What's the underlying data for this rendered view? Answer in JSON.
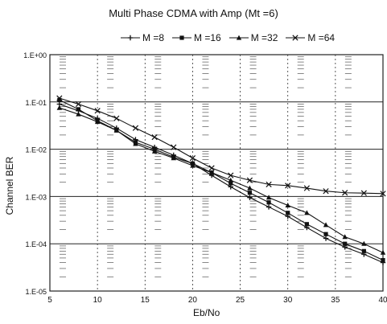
{
  "chart_data": {
    "type": "line",
    "title": "Multi Phase CDMA with Amp (Mt =6)",
    "xlabel": "Eb/No",
    "ylabel": "Channel BER",
    "xlim": [
      5,
      40
    ],
    "ylim_log10": [
      -5,
      0
    ],
    "yscale": "log",
    "x_ticks": [
      "5",
      "10",
      "15",
      "20",
      "25",
      "30",
      "35",
      "40"
    ],
    "y_ticks": [
      "1.E-05",
      "1.E-04",
      "1.E-03",
      "1.E-02",
      "1.E-01",
      "1.E+00"
    ],
    "legend_position": "top",
    "grid": true,
    "x": [
      6,
      8,
      10,
      12,
      14,
      16,
      18,
      20,
      22,
      24,
      26,
      28,
      30,
      32,
      34,
      36,
      38,
      40
    ],
    "series": [
      {
        "name": "M =8",
        "marker": "plus",
        "values": [
          0.09,
          0.065,
          0.045,
          0.028,
          0.016,
          0.011,
          0.0075,
          0.005,
          0.0028,
          0.0016,
          0.00095,
          0.0006,
          0.00038,
          0.00022,
          0.00013,
          8.5e-05,
          6e-05,
          4e-05
        ]
      },
      {
        "name": "M =16",
        "marker": "square",
        "values": [
          0.11,
          0.07,
          0.04,
          0.025,
          0.014,
          0.01,
          0.0068,
          0.005,
          0.0032,
          0.0019,
          0.0012,
          0.00075,
          0.00045,
          0.00026,
          0.00016,
          0.0001,
          7e-05,
          4.5e-05
        ]
      },
      {
        "name": "M =32",
        "marker": "triangle",
        "values": [
          0.075,
          0.055,
          0.038,
          0.025,
          0.013,
          0.009,
          0.0065,
          0.0045,
          0.0032,
          0.0022,
          0.0015,
          0.00095,
          0.00065,
          0.00045,
          0.00025,
          0.00014,
          0.0001,
          6.5e-05
        ]
      },
      {
        "name": "M =64",
        "marker": "x",
        "values": [
          0.12,
          0.09,
          0.065,
          0.045,
          0.028,
          0.018,
          0.011,
          0.0065,
          0.004,
          0.0028,
          0.0022,
          0.0018,
          0.0017,
          0.0015,
          0.0013,
          0.0012,
          0.00118,
          0.00115
        ]
      }
    ]
  }
}
